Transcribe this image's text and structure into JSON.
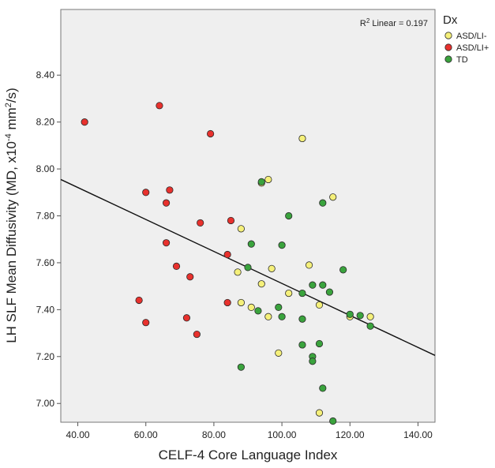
{
  "chart_data": {
    "type": "scatter",
    "xlabel": "CELF-4 Core Language Index",
    "ylabel": "LH SLF Mean Diffusivity (MD, x10",
    "ylabel_sup": "-4",
    "ylabel_mid": " mm",
    "ylabel_sup2": "2",
    "ylabel_end": "/s)",
    "xlim": [
      35,
      145
    ],
    "ylim": [
      6.92,
      8.68
    ],
    "xticks": [
      40,
      60,
      80,
      100,
      120,
      140
    ],
    "xtick_labels": [
      "40.00",
      "60.00",
      "80.00",
      "100.00",
      "120.00",
      "140.00"
    ],
    "yticks": [
      7.0,
      7.2,
      7.4,
      7.6,
      7.8,
      8.0,
      8.2,
      8.4
    ],
    "ytick_labels": [
      "7.00",
      "7.20",
      "7.40",
      "7.60",
      "7.80",
      "8.00",
      "8.20",
      "8.40"
    ],
    "grid": false,
    "legend_position": "outside-right",
    "annotation": {
      "prefix": "R",
      "sup": "2",
      "suffix": " Linear = 0.197"
    },
    "fit_line": {
      "x": [
        35,
        145
      ],
      "y": [
        7.955,
        7.205
      ]
    },
    "legend_title": "Dx",
    "series": [
      {
        "name": "ASD/LI-",
        "color": "#f5f07a",
        "points": [
          [
            106,
            8.13
          ],
          [
            96,
            7.955
          ],
          [
            94,
            7.94
          ],
          [
            115,
            7.88
          ],
          [
            88,
            7.745
          ],
          [
            108,
            7.59
          ],
          [
            97,
            7.575
          ],
          [
            87,
            7.56
          ],
          [
            94,
            7.51
          ],
          [
            102,
            7.47
          ],
          [
            88,
            7.43
          ],
          [
            91,
            7.41
          ],
          [
            96,
            7.37
          ],
          [
            111,
            7.42
          ],
          [
            120,
            7.37
          ],
          [
            126,
            7.37
          ],
          [
            99,
            7.215
          ],
          [
            111,
            6.96
          ]
        ]
      },
      {
        "name": "ASD/LI+",
        "color": "#e8312d",
        "points": [
          [
            42,
            8.2
          ],
          [
            64,
            8.27
          ],
          [
            79,
            8.15
          ],
          [
            60,
            7.9
          ],
          [
            67,
            7.91
          ],
          [
            66,
            7.855
          ],
          [
            76,
            7.77
          ],
          [
            85,
            7.78
          ],
          [
            66,
            7.685
          ],
          [
            84,
            7.635
          ],
          [
            69,
            7.585
          ],
          [
            73,
            7.54
          ],
          [
            58,
            7.44
          ],
          [
            60,
            7.345
          ],
          [
            72,
            7.365
          ],
          [
            84,
            7.43
          ],
          [
            75,
            7.295
          ]
        ]
      },
      {
        "name": "TD",
        "color": "#3aa33d",
        "points": [
          [
            94,
            7.945
          ],
          [
            112,
            7.855
          ],
          [
            102,
            7.8
          ],
          [
            91,
            7.68
          ],
          [
            100,
            7.675
          ],
          [
            90,
            7.58
          ],
          [
            118,
            7.57
          ],
          [
            106,
            7.47
          ],
          [
            109,
            7.505
          ],
          [
            112,
            7.505
          ],
          [
            114,
            7.475
          ],
          [
            99,
            7.41
          ],
          [
            93,
            7.395
          ],
          [
            100,
            7.37
          ],
          [
            106,
            7.36
          ],
          [
            120,
            7.38
          ],
          [
            123,
            7.375
          ],
          [
            126,
            7.33
          ],
          [
            106,
            7.25
          ],
          [
            111,
            7.255
          ],
          [
            109,
            7.2
          ],
          [
            109,
            7.18
          ],
          [
            88,
            7.155
          ],
          [
            112,
            7.065
          ],
          [
            115,
            6.925
          ]
        ]
      }
    ]
  }
}
